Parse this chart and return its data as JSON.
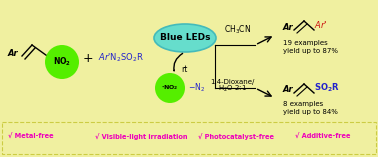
{
  "bg_color": "#f0f0a0",
  "green_circle_color": "#55ee00",
  "cyan_ellipse_color": "#66ddcc",
  "blue_text_color": "#2222cc",
  "magenta_text_color": "#ee00bb",
  "red_text_color": "#cc1111",
  "black_text_color": "#111111",
  "footer_items": [
    "√ Metal-free",
    "√ Visible-light irradiation",
    "√ Photocatalyst-free",
    "√ Additive-free"
  ],
  "footer_border_color": "#cccc44"
}
